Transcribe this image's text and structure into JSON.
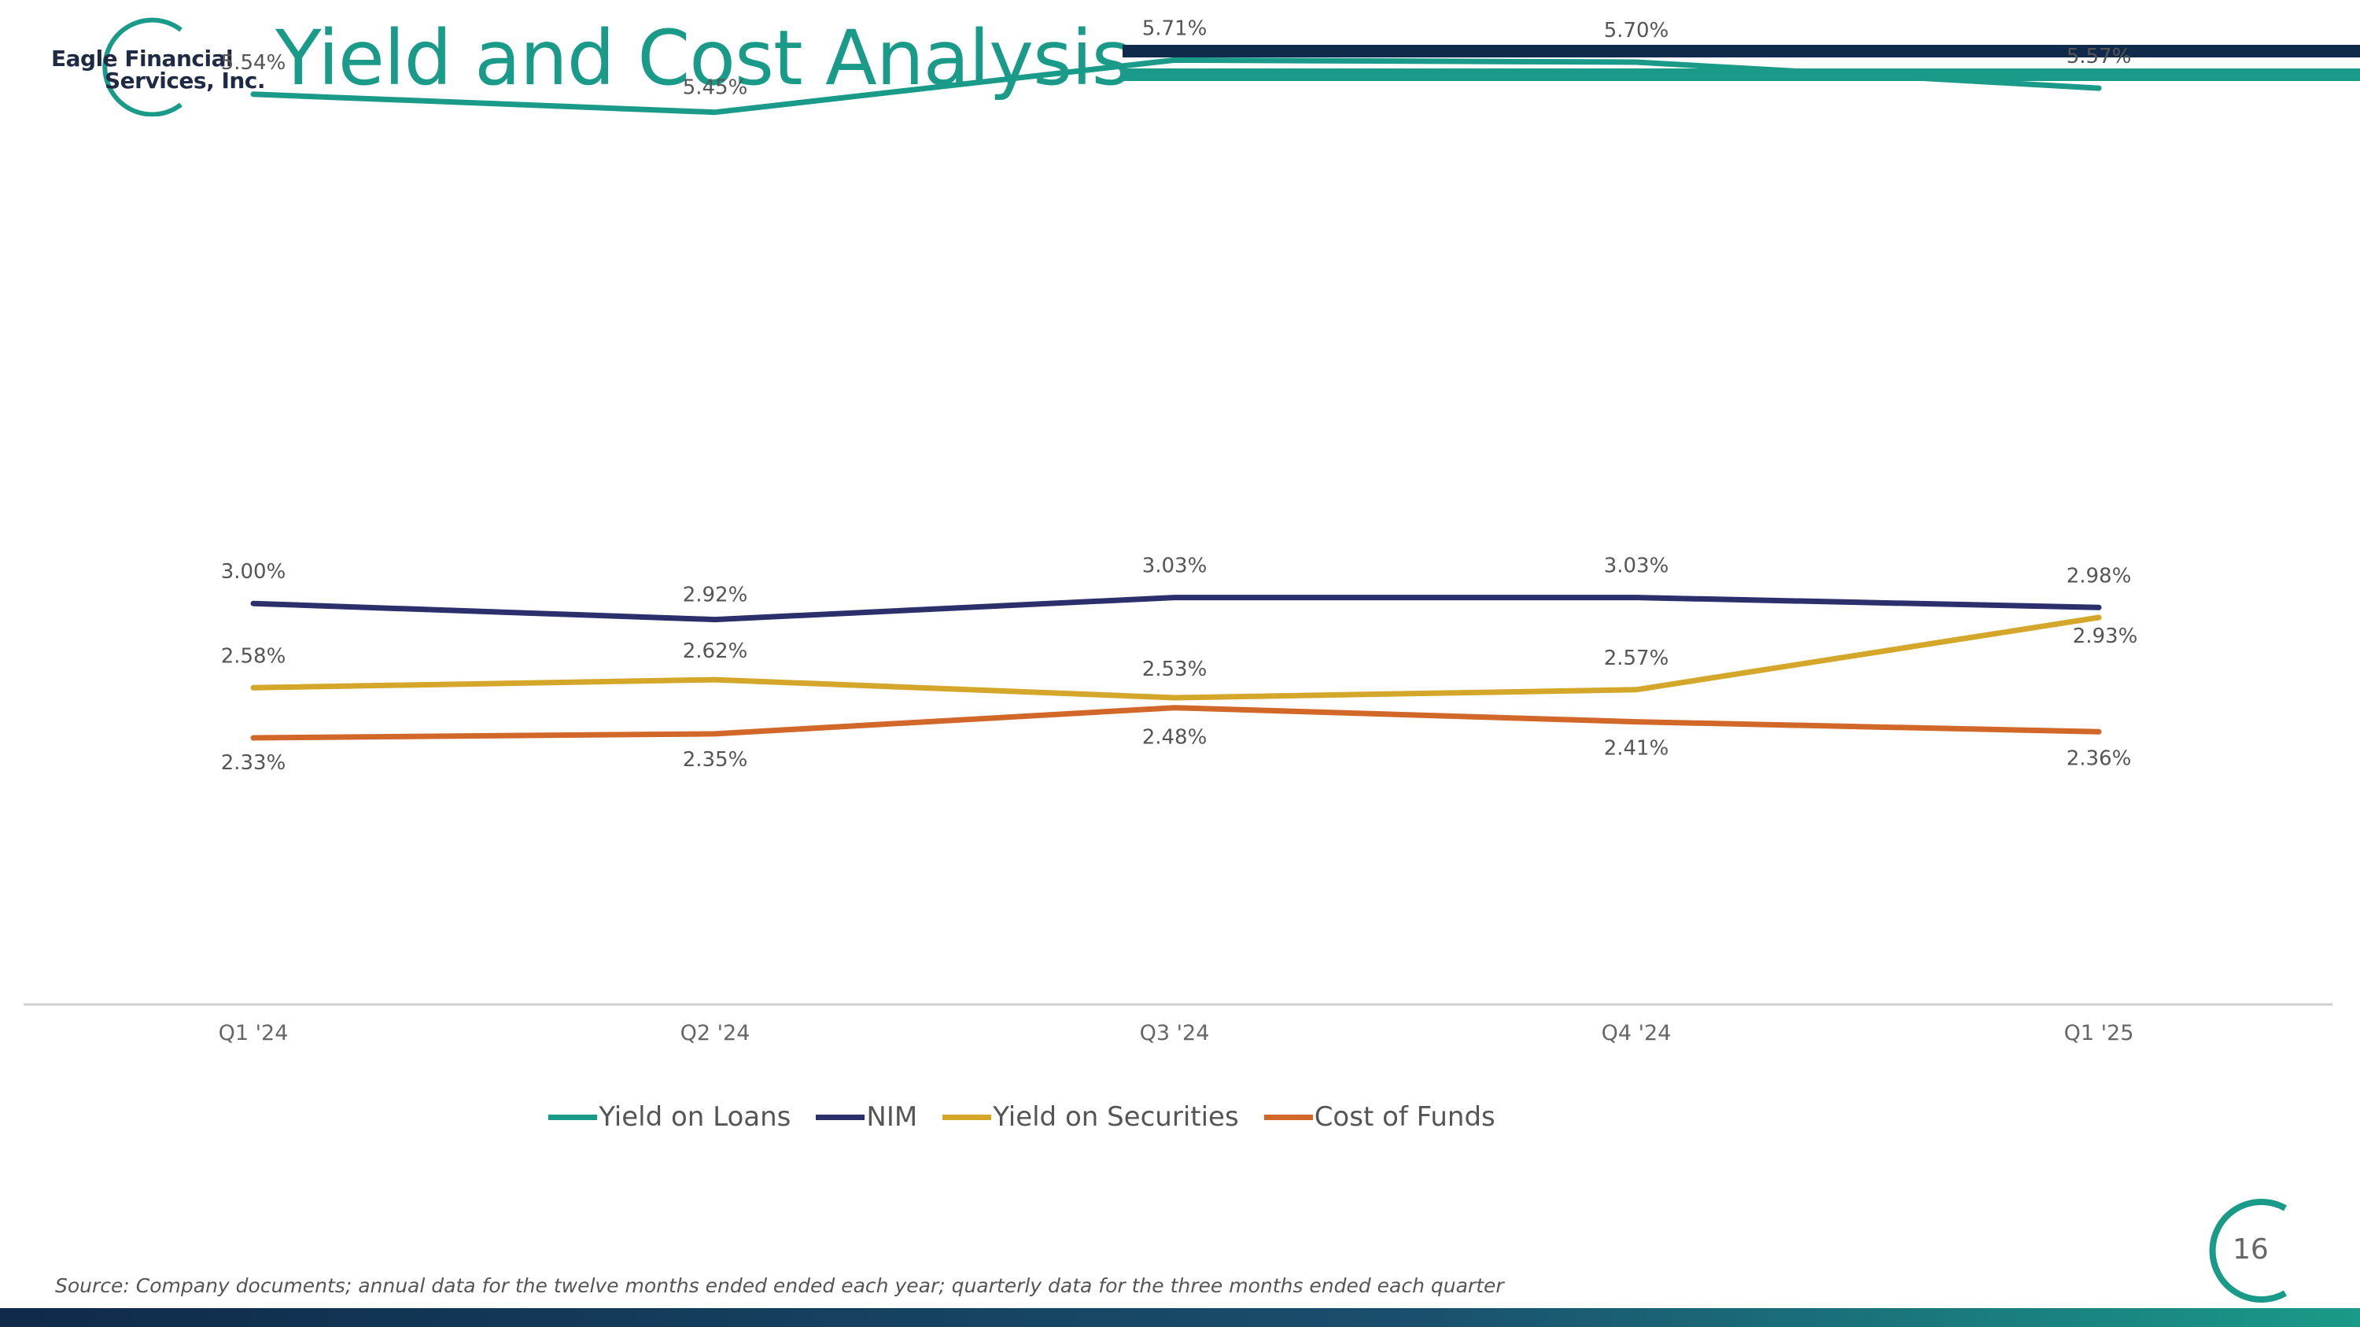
{
  "header": {
    "logo_line1": "Eagle Financial",
    "logo_line2": "Services, Inc.",
    "title": "Yield and Cost Analysis"
  },
  "colors": {
    "teal": "#1a9a88",
    "navy": "#0f2a4a",
    "nim": "#2b2f6b",
    "gold": "#d4a62a",
    "orange": "#d2672a",
    "axis": "#d0d0d0"
  },
  "chart_data": {
    "type": "line",
    "title": "",
    "xlabel": "",
    "ylabel": "",
    "categories": [
      "Q1 '24",
      "Q2 '24",
      "Q3 '24",
      "Q4 '24",
      "Q1 '25"
    ],
    "ylim": [
      1.0,
      6.0
    ],
    "grid": false,
    "legend_position": "bottom",
    "series": [
      {
        "name": "Yield on Loans",
        "values": [
          5.54,
          5.45,
          5.71,
          5.7,
          5.57
        ],
        "labels": [
          "5.54%",
          "5.45%",
          "5.71%",
          "5.70%",
          "5.57%"
        ],
        "color": "#1a9a88"
      },
      {
        "name": "NIM",
        "values": [
          3.0,
          2.92,
          3.03,
          3.03,
          2.98
        ],
        "labels": [
          "3.00%",
          "2.92%",
          "3.03%",
          "3.03%",
          "2.98%"
        ],
        "color": "#2b2f6b"
      },
      {
        "name": "Yield on Securities",
        "values": [
          2.58,
          2.62,
          2.53,
          2.57,
          2.93
        ],
        "labels": [
          "2.58%",
          "2.62%",
          "2.53%",
          "2.57%",
          "2.93%"
        ],
        "color": "#d4a62a"
      },
      {
        "name": "Cost of Funds",
        "values": [
          2.33,
          2.35,
          2.48,
          2.41,
          2.36
        ],
        "labels": [
          "2.33%",
          "2.35%",
          "2.48%",
          "2.41%",
          "2.36%"
        ],
        "color": "#d2672a"
      }
    ]
  },
  "footer": {
    "source": "Source: Company documents; annual data for the twelve months ended ended each year; quarterly data for the three months ended each quarter",
    "page_number": "16"
  }
}
